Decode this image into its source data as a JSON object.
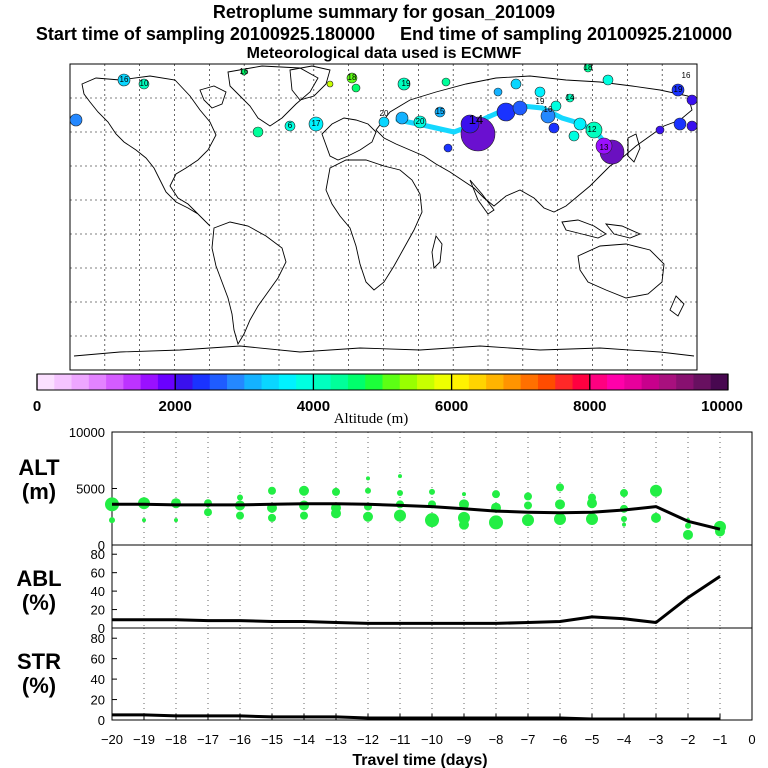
{
  "header": {
    "title": "Retroplume summary for gosan_201009",
    "start_label": "Start time of sampling 20100925.180000",
    "end_label": "End time of sampling 20100925.210000",
    "met_label": "Meteorological data used is ECMWF"
  },
  "colorbar": {
    "ticks": [
      "0",
      "2000",
      "4000",
      "6000",
      "8000",
      "10000"
    ],
    "label": "Altitude (m)",
    "colors": [
      "#fbe0ff",
      "#f5c4ff",
      "#eea6ff",
      "#e383ff",
      "#d45cff",
      "#bd33ff",
      "#9a10ff",
      "#6a00ff",
      "#3a10ee",
      "#1a33ff",
      "#1f5cff",
      "#2488ff",
      "#14b2ff",
      "#0ad6ff",
      "#00f2ff",
      "#00ffe0",
      "#00ffbf",
      "#00ff9a",
      "#00ff6c",
      "#1cff3a",
      "#5cff14",
      "#99ff00",
      "#c8ff00",
      "#eeff00",
      "#fff200",
      "#ffd400",
      "#ffb400",
      "#ff9400",
      "#ff7000",
      "#ff4c00",
      "#ff2828",
      "#ff0040",
      "#ff0080",
      "#ff00aa",
      "#e8009c",
      "#c8008c",
      "#a8107e",
      "#881070",
      "#681060",
      "#480850"
    ]
  },
  "map": {
    "labels": [
      "16",
      "16",
      "18",
      "10",
      "19",
      "18",
      "20",
      "19",
      "17",
      "6",
      "20",
      "15",
      "14",
      "16",
      "12",
      "13",
      "19",
      "16",
      "14"
    ]
  },
  "chart_data": [
    {
      "type": "line",
      "panel": "ALT",
      "ylabel": "ALT (m)",
      "ylim": [
        0,
        10000
      ],
      "yticks": [
        "0",
        "5000",
        "10000"
      ],
      "x": [
        -20,
        -19,
        -18,
        -17,
        -16,
        -15,
        -14,
        -13,
        -12,
        -11,
        -10,
        -9,
        -8,
        -7,
        -6,
        -5,
        -4,
        -3,
        -2,
        -1
      ],
      "series": [
        {
          "name": "mean altitude",
          "values": [
            3600,
            3600,
            3550,
            3550,
            3550,
            3600,
            3650,
            3650,
            3600,
            3500,
            3400,
            3200,
            3000,
            2900,
            2850,
            2900,
            3100,
            3400,
            2100,
            1400
          ]
        }
      ],
      "scatter": {
        "color": "#22ee44",
        "points": [
          [
            -20,
            3600,
            7
          ],
          [
            -20,
            2200,
            3
          ],
          [
            -19,
            3700,
            6
          ],
          [
            -19,
            2200,
            2
          ],
          [
            -18,
            3700,
            5
          ],
          [
            -18,
            2200,
            2
          ],
          [
            -17,
            3700,
            4
          ],
          [
            -17,
            2900,
            4
          ],
          [
            -16,
            4200,
            3
          ],
          [
            -16,
            3500,
            5
          ],
          [
            -16,
            2600,
            4
          ],
          [
            -15,
            4800,
            4
          ],
          [
            -15,
            3300,
            5
          ],
          [
            -15,
            2400,
            4
          ],
          [
            -14,
            4800,
            5
          ],
          [
            -14,
            3500,
            5
          ],
          [
            -14,
            2600,
            4
          ],
          [
            -13,
            4700,
            4
          ],
          [
            -13,
            3300,
            5
          ],
          [
            -13,
            2800,
            5
          ],
          [
            -12,
            5900,
            2
          ],
          [
            -12,
            4800,
            3
          ],
          [
            -12,
            3400,
            4
          ],
          [
            -12,
            2500,
            5
          ],
          [
            -11,
            6100,
            2
          ],
          [
            -11,
            4600,
            3
          ],
          [
            -11,
            3600,
            4
          ],
          [
            -11,
            2600,
            6
          ],
          [
            -10,
            4700,
            3
          ],
          [
            -10,
            3600,
            4
          ],
          [
            -10,
            2200,
            7
          ],
          [
            -9,
            4500,
            2
          ],
          [
            -9,
            3600,
            5
          ],
          [
            -9,
            2400,
            6
          ],
          [
            -9,
            1800,
            5
          ],
          [
            -8,
            4500,
            4
          ],
          [
            -8,
            3300,
            5
          ],
          [
            -8,
            2000,
            7
          ],
          [
            -7,
            4300,
            4
          ],
          [
            -7,
            3500,
            4
          ],
          [
            -7,
            2200,
            6
          ],
          [
            -6,
            5100,
            4
          ],
          [
            -6,
            3600,
            5
          ],
          [
            -6,
            2300,
            6
          ],
          [
            -5,
            4200,
            4
          ],
          [
            -5,
            3700,
            5
          ],
          [
            -5,
            2300,
            6
          ],
          [
            -4,
            4600,
            4
          ],
          [
            -4,
            3200,
            4
          ],
          [
            -4,
            2300,
            3
          ],
          [
            -4,
            1800,
            2
          ],
          [
            -3,
            4800,
            6
          ],
          [
            -3,
            2400,
            5
          ],
          [
            -2,
            2200,
            2
          ],
          [
            -2,
            1700,
            3
          ],
          [
            -2,
            900,
            5
          ],
          [
            -1,
            1600,
            6
          ],
          [
            -1,
            1200,
            5
          ]
        ]
      }
    },
    {
      "type": "line",
      "panel": "ABL",
      "ylabel": "ABL (%)",
      "ylim": [
        0,
        90
      ],
      "yticks": [
        "0",
        "20",
        "40",
        "60",
        "80"
      ],
      "x": [
        -20,
        -19,
        -18,
        -17,
        -16,
        -15,
        -14,
        -13,
        -12,
        -11,
        -10,
        -9,
        -8,
        -7,
        -6,
        -5,
        -4,
        -3,
        -2,
        -1
      ],
      "series": [
        {
          "name": "ABL fraction",
          "values": [
            9,
            9,
            9,
            8,
            8,
            7,
            7,
            6,
            5,
            5,
            5,
            5,
            5,
            6,
            7,
            12,
            10,
            6,
            33,
            56
          ]
        }
      ]
    },
    {
      "type": "line",
      "panel": "STR",
      "ylabel": "STR (%)",
      "xlabel": "Travel time (days)",
      "ylim": [
        0,
        90
      ],
      "yticks": [
        "0",
        "20",
        "40",
        "60",
        "80"
      ],
      "xticks": [
        "-20",
        "-19",
        "-18",
        "-17",
        "-16",
        "-15",
        "-14",
        "-13",
        "-12",
        "-11",
        "-10",
        "-9",
        "-8",
        "-7",
        "-6",
        "-5",
        "-4",
        "-3",
        "-2",
        "-1",
        "0"
      ],
      "x": [
        -20,
        -19,
        -18,
        -17,
        -16,
        -15,
        -14,
        -13,
        -12,
        -11,
        -10,
        -9,
        -8,
        -7,
        -6,
        -5,
        -4,
        -3,
        -2,
        -1
      ],
      "series": [
        {
          "name": "stratospheric fraction",
          "values": [
            5,
            5,
            4,
            4,
            4,
            3,
            3,
            3,
            2,
            2,
            2,
            2,
            2,
            2,
            2,
            1,
            1,
            1,
            1,
            1
          ]
        }
      ]
    }
  ]
}
